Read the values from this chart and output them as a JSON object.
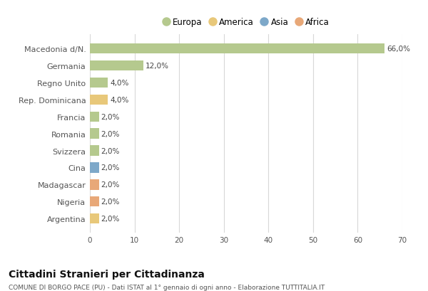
{
  "categories": [
    "Macedonia d/N.",
    "Germania",
    "Regno Unito",
    "Rep. Dominicana",
    "Francia",
    "Romania",
    "Svizzera",
    "Cina",
    "Madagascar",
    "Nigeria",
    "Argentina"
  ],
  "values": [
    66.0,
    12.0,
    4.0,
    4.0,
    2.0,
    2.0,
    2.0,
    2.0,
    2.0,
    2.0,
    2.0
  ],
  "labels": [
    "66,0%",
    "12,0%",
    "4,0%",
    "4,0%",
    "2,0%",
    "2,0%",
    "2,0%",
    "2,0%",
    "2,0%",
    "2,0%",
    "2,0%"
  ],
  "colors": [
    "#b5c98e",
    "#b5c98e",
    "#b5c98e",
    "#e8c87a",
    "#b5c98e",
    "#b5c98e",
    "#b5c98e",
    "#7da8c9",
    "#e8a878",
    "#e8a878",
    "#e8c87a"
  ],
  "legend_labels": [
    "Europa",
    "America",
    "Asia",
    "Africa"
  ],
  "legend_colors": [
    "#b5c98e",
    "#e8c87a",
    "#7da8c9",
    "#e8a878"
  ],
  "title": "Cittadini Stranieri per Cittadinanza",
  "subtitle": "COMUNE DI BORGO PACE (PU) - Dati ISTAT al 1° gennaio di ogni anno - Elaborazione TUTTITALIA.IT",
  "xlim": [
    0,
    70
  ],
  "xticks": [
    0,
    10,
    20,
    30,
    40,
    50,
    60,
    70
  ],
  "background_color": "#ffffff",
  "grid_color": "#d8d8d8"
}
